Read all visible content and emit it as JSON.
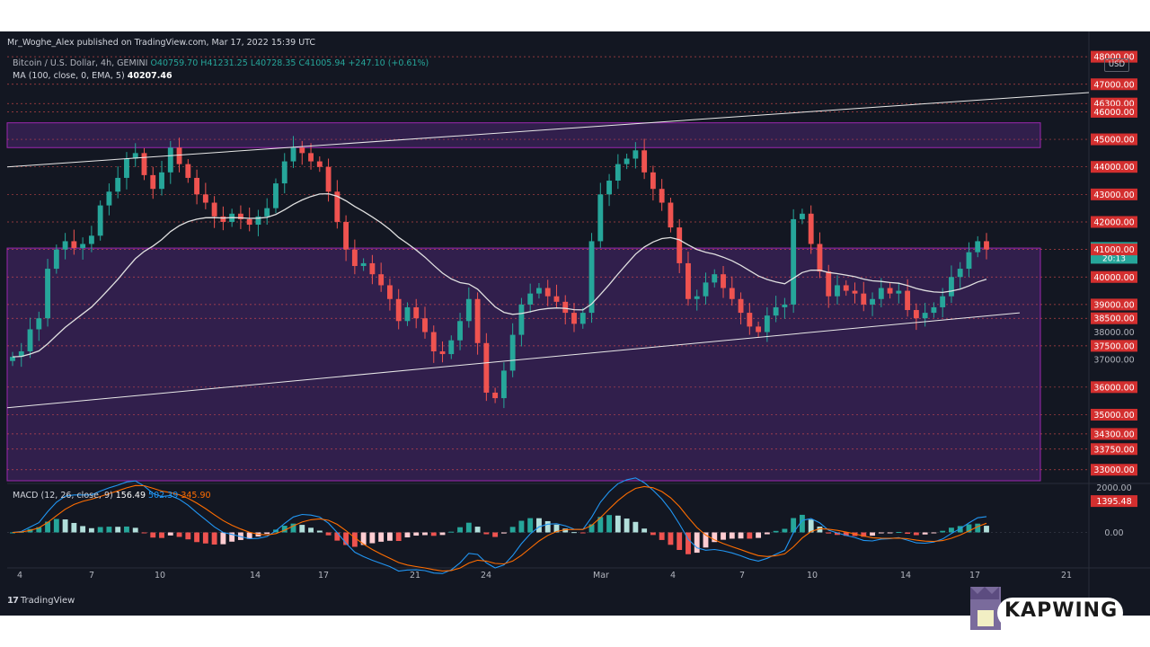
{
  "header": {
    "publisher": "Mr_Woghe_Alex published on TradingView.com, Mar 17, 2022 15:39 UTC",
    "symbol": "Bitcoin / U.S. Dollar, 4h, GEMINI",
    "open": "O40759.70",
    "high": "H41231.25",
    "low": "L40728.35",
    "close": "C41005.94",
    "change": "+247.10 (+0.61%)",
    "ma_label": "MA (100, close, 0, EMA, 5)",
    "ma_value": "40207.46",
    "currency": "USD"
  },
  "macd_legend": {
    "label": "MACD (12, 26, close, 9)",
    "hist": "156.49",
    "macd": "502.39",
    "signal": "345.90"
  },
  "footer": {
    "tv_brand": "TradingView",
    "watermark": "KAPWING"
  },
  "colors": {
    "bg": "#131722",
    "up": "#26a69a",
    "down": "#ef5350",
    "ma": "#e0e0e0",
    "zone": "#4a2770",
    "zone_border": "#9c27b0",
    "level_line": "#ef5350",
    "macd": "#2196f3",
    "signal": "#ff6d00"
  },
  "chart_data": [
    {
      "type": "candlestick",
      "title": "Bitcoin / U.S. Dollar, 4h, GEMINI",
      "x_ticks": [
        "4",
        "7",
        "10",
        "14",
        "17",
        "21",
        "24",
        "Mar",
        "4",
        "7",
        "10",
        "14",
        "17",
        "21"
      ],
      "y_axis_labels": [
        "48000.00",
        "47000.00",
        "46300.00",
        "46000.00",
        "45000.00",
        "44000.00",
        "43000.00",
        "42000.00",
        "41005.94",
        "41000.00",
        "40000.00",
        "39000.00",
        "38500.00",
        "38000.00",
        "37500.00",
        "37000.00",
        "36000.00",
        "35000.00",
        "34300.00",
        "33750.00",
        "33000.00"
      ],
      "last_price_label": "41005.94",
      "countdown": "20:13",
      "ylim": [
        32600,
        48200
      ],
      "horizontal_levels": [
        48000,
        47000,
        46300,
        46000,
        45000,
        44000,
        43000,
        42000,
        41000,
        40000,
        39000,
        38500,
        37500,
        36000,
        35000,
        34300,
        33750,
        33000
      ],
      "zones": [
        {
          "from_x": "4",
          "to_x": "21",
          "low": 44700,
          "high": 45600
        },
        {
          "from_x": "4",
          "to_x": "21",
          "low": 32600,
          "high": 41050
        }
      ],
      "trendlines": [
        {
          "name": "upper channel",
          "start": 44000,
          "end": 46700
        },
        {
          "name": "lower channel",
          "start": 35250,
          "end": 38700
        }
      ],
      "close_path": [
        37100,
        37300,
        38100,
        38500,
        40300,
        41000,
        41300,
        41050,
        41200,
        41500,
        42600,
        43100,
        43600,
        44300,
        44500,
        43700,
        43200,
        43800,
        44700,
        44100,
        43600,
        43000,
        42700,
        42200,
        42000,
        42300,
        42100,
        41900,
        42200,
        42500,
        43400,
        44200,
        44700,
        44500,
        44200,
        44000,
        43100,
        42000,
        41000,
        40400,
        40500,
        40100,
        39700,
        39200,
        38400,
        38900,
        38500,
        38000,
        37300,
        37200,
        37700,
        38400,
        39200,
        37600,
        35800,
        35600,
        36600,
        37900,
        39000,
        39400,
        39600,
        39300,
        39100,
        38700,
        38300,
        38700,
        41300,
        43000,
        43500,
        44100,
        44300,
        44600,
        43800,
        43200,
        42700,
        41800,
        40500,
        39200,
        39300,
        39800,
        40100,
        39600,
        39200,
        38700,
        38200,
        38000,
        38600,
        38900,
        39000,
        42100,
        42300,
        41200,
        40200,
        39300,
        39700,
        39500,
        39400,
        39000,
        39200,
        39600,
        39400,
        39500,
        38800,
        38500,
        38700,
        38900,
        39300,
        40000,
        40300,
        40900,
        41300,
        41000
      ],
      "ma_label": "MA (100, close, 0, EMA, 5)",
      "ma_last": 40207.46
    },
    {
      "type": "macd",
      "title": "MACD (12, 26, close, 9)",
      "hist_last": 156.49,
      "macd_last": 502.39,
      "signal_last": 345.9,
      "y_axis_labels": [
        "2000.00",
        "1395.48",
        "0.00"
      ],
      "ylim": [
        -1300,
        2100
      ]
    }
  ]
}
